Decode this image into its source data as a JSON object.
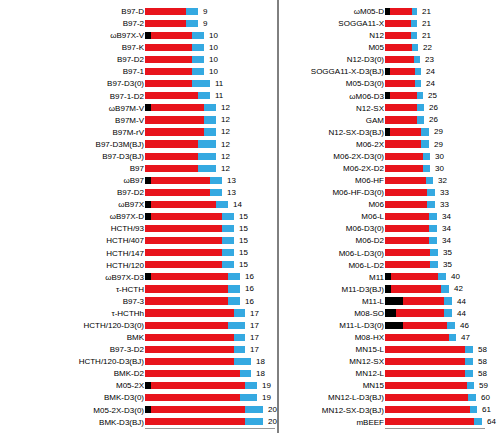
{
  "chart_data": [
    {
      "type": "bar",
      "orientation": "horizontal",
      "stacked": true,
      "tick_labels": "y",
      "grid": false,
      "categories": [
        "B97-D",
        "B97-2",
        "ωB97X-V",
        "B97-K",
        "B97-D2",
        "B97-1",
        "B97-D3(0)",
        "B97-1-D2",
        "ωB97M-V",
        "B97M-V",
        "B97M-rV",
        "B97-D3M(BJ)",
        "B97-D3(BJ)",
        "B97",
        "ωB97",
        "B97-D2",
        "ωB97X",
        "ωB97X-D",
        "HCTH/93",
        "HCTH/407",
        "HCTH/147",
        "HCTH/120",
        "ωB97X-D3",
        "τ-HCTH",
        "B97-3",
        "τ-HCTHh",
        "HCTH/120-D3(0)",
        "BMK",
        "B97-3-D2",
        "HCTH/120-D3(BJ)",
        "BMK-D2",
        "M05-2X",
        "BMK-D3(0)",
        "M05-2X-D3(0)",
        "BMK-D3(BJ)"
      ],
      "series": [
        {
          "color": "#000000",
          "values": [
            0,
            0,
            1,
            0,
            0,
            0,
            0,
            0,
            1,
            0,
            0,
            0,
            0,
            0,
            1,
            0,
            1,
            1,
            0,
            0,
            0,
            0,
            1,
            0,
            0,
            0,
            0,
            0,
            0,
            0,
            0,
            1,
            0,
            1,
            0
          ]
        },
        {
          "color": "#e8141c",
          "values": [
            7,
            7,
            7,
            8,
            8,
            8,
            8,
            9,
            9,
            10,
            10,
            9,
            9,
            9,
            10,
            11,
            11,
            12,
            13,
            13,
            13,
            13,
            13,
            14,
            14,
            15,
            14,
            15,
            15,
            15,
            16,
            16,
            16,
            16,
            17
          ]
        },
        {
          "color": "#35a9e1",
          "values": [
            2,
            2,
            2,
            2,
            2,
            2,
            3,
            2,
            2,
            2,
            2,
            3,
            3,
            3,
            2,
            2,
            2,
            2,
            2,
            2,
            2,
            2,
            2,
            2,
            2,
            2,
            3,
            2,
            2,
            3,
            2,
            2,
            3,
            3,
            3
          ]
        }
      ],
      "totals": [
        9,
        9,
        10,
        10,
        10,
        10,
        11,
        11,
        12,
        12,
        12,
        12,
        12,
        12,
        13,
        13,
        14,
        15,
        15,
        15,
        15,
        15,
        16,
        16,
        16,
        17,
        17,
        17,
        17,
        18,
        18,
        19,
        19,
        20,
        20
      ],
      "xlim": [
        0,
        22
      ],
      "xticks": []
    },
    {
      "type": "bar",
      "orientation": "horizontal",
      "stacked": true,
      "tick_labels": "y",
      "grid": false,
      "categories": [
        "ωM05-D",
        "SOGGA11-X",
        "N12",
        "M05",
        "N12-D3(0)",
        "SOGGA11-X-D3(BJ)",
        "M05-D3(0)",
        "ωM06-D3",
        "N12-SX",
        "GAM",
        "N12-SX-D3(BJ)",
        "M06-2X",
        "M06-2X-D3(0)",
        "M06-2X-D2",
        "M06-HF",
        "M06-HF-D3(0)",
        "M06",
        "M06-L",
        "M06-D3(0)",
        "M06-D2",
        "M06-L-D3(0)",
        "M06-L-D2",
        "M11",
        "M11-D3(BJ)",
        "M11-L",
        "M08-SO",
        "M11-L-D3(0)",
        "M08-HX",
        "MN15-L",
        "MN12-SX",
        "MN12-L",
        "MN15",
        "MN12-L-D3(BJ)",
        "MN12-SX-D3(BJ)",
        "mBEEF"
      ],
      "series": [
        {
          "color": "#000000",
          "values": [
            3,
            0,
            0,
            0,
            0,
            3,
            0,
            3,
            0,
            0,
            3,
            0,
            0,
            0,
            0,
            0,
            0,
            0,
            0,
            0,
            0,
            0,
            4,
            4,
            12,
            7,
            12,
            0,
            0,
            0,
            0,
            0,
            0,
            0,
            0
          ]
        },
        {
          "color": "#e8141c",
          "values": [
            15,
            17,
            17,
            18,
            19,
            17,
            20,
            18,
            21,
            21,
            21,
            24,
            25,
            25,
            27,
            28,
            28,
            29,
            29,
            29,
            30,
            30,
            31,
            33,
            27,
            32,
            29,
            42,
            53,
            53,
            53,
            54,
            55,
            56,
            59
          ]
        },
        {
          "color": "#35a9e1",
          "values": [
            3,
            4,
            4,
            4,
            4,
            4,
            4,
            4,
            5,
            5,
            5,
            5,
            5,
            5,
            5,
            5,
            5,
            5,
            5,
            5,
            5,
            5,
            5,
            5,
            5,
            5,
            5,
            5,
            5,
            5,
            5,
            5,
            5,
            5,
            5
          ]
        }
      ],
      "totals": [
        21,
        21,
        21,
        22,
        23,
        24,
        24,
        25,
        26,
        26,
        29,
        29,
        30,
        30,
        32,
        33,
        33,
        34,
        34,
        34,
        35,
        35,
        40,
        42,
        44,
        44,
        46,
        47,
        58,
        58,
        58,
        59,
        60,
        61,
        64
      ],
      "xlim": [
        0,
        66
      ],
      "xticks": []
    }
  ]
}
